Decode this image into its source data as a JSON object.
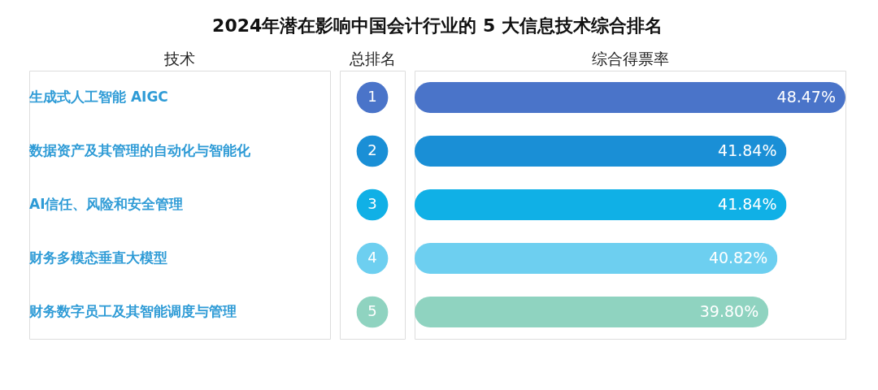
{
  "chart_data": {
    "type": "bar",
    "orientation": "horizontal",
    "title": "2024年潜在影响中国会计行业的 5 大信息技术综合排名",
    "categories": [
      "生成式人工智能 AIGC",
      "数据资产及其管理的自动化与智能化",
      "AI信任、风险和安全管理",
      "财务多模态垂直大模型",
      "财务数字员工及其智能调度与管理"
    ],
    "values": [
      48.47,
      41.84,
      41.84,
      40.82,
      39.8
    ],
    "value_labels": [
      "48.47%",
      "41.84%",
      "41.84%",
      "40.82%",
      "39.80%"
    ],
    "colors": [
      "#4a74c9",
      "#1a8fd6",
      "#10b0e6",
      "#6dcff0",
      "#8fd3c0"
    ],
    "annotations": [
      "技术",
      "总排名",
      "综合得票率",
      "1",
      "2",
      "3",
      "4",
      "5"
    ]
  }
}
